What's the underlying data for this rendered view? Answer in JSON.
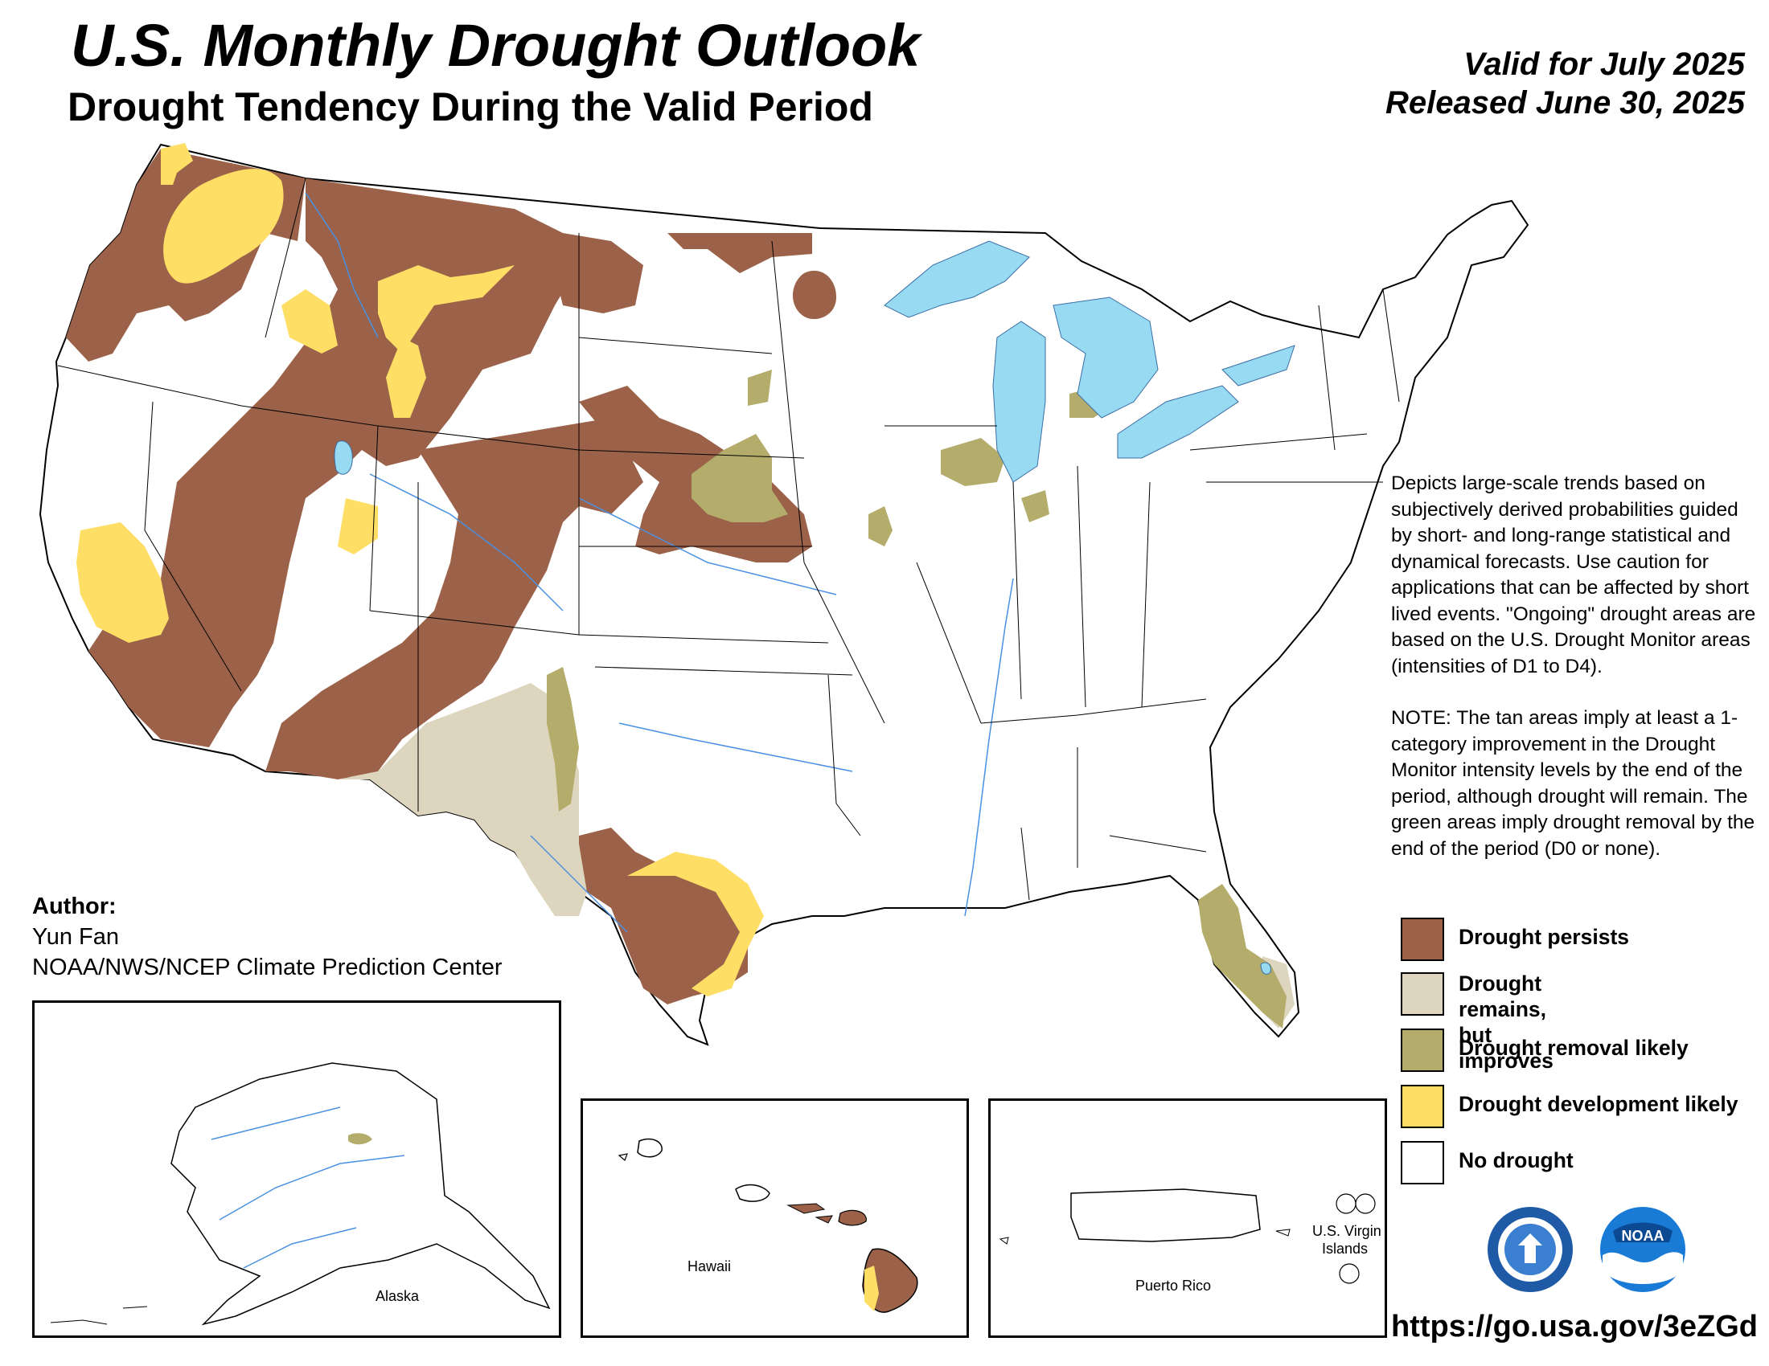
{
  "header": {
    "title": "U.S. Monthly Drought Outlook",
    "subtitle": "Drought Tendency During the Valid Period",
    "valid": "Valid for July 2025",
    "released": "Released June 30, 2025"
  },
  "description": {
    "paragraph1": "Depicts large-scale trends based on subjectively derived probabilities guided by short- and long-range statistical and dynamical forecasts. Use caution for applications that can be affected by short lived events. \"Ongoing\" drought areas are based on the U.S. Drought Monitor areas (intensities of D1 to D4).",
    "paragraph2": "NOTE: The tan areas imply at least a 1-category improvement in the Drought Monitor intensity levels by the end of the period, although drought will remain. The green areas imply drought removal by the end of the period (D0 or none)."
  },
  "legend": [
    {
      "label": "Drought persists",
      "color": "#9b6249"
    },
    {
      "label": "Drought remains,\nbut improves",
      "color": "#ded5bf"
    },
    {
      "label": "Drought removal likely",
      "color": "#b3ac6b"
    },
    {
      "label": "Drought development likely",
      "color": "#ffde66"
    },
    {
      "label": "No drought",
      "color": "#ffffff"
    }
  ],
  "author": {
    "heading": "Author:",
    "name": "Yun Fan",
    "org": "NOAA/NWS/NCEP Climate Prediction Center"
  },
  "insets": {
    "alaska": "Alaska",
    "hawaii": "Hawaii",
    "puerto_rico": "Puerto Rico",
    "usvi_line1": "U.S. Virgin",
    "usvi_line2": "Islands"
  },
  "url": "https://go.usa.gov/3eZGd",
  "colors": {
    "persist": "#9b6249",
    "improve": "#ded5bf",
    "removal": "#b3ac6b",
    "development": "#ffde66",
    "water": "#98daf2",
    "river": "#4a90e2"
  }
}
